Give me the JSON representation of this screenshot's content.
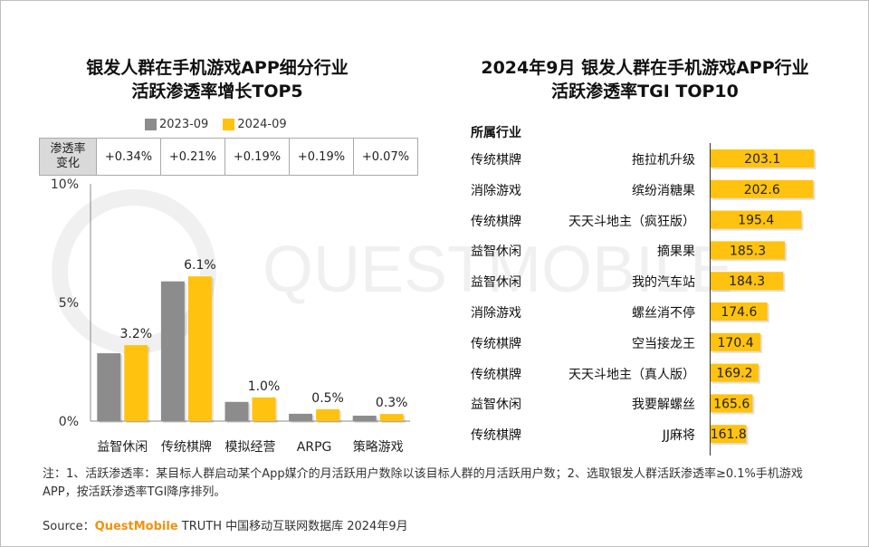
{
  "watermark": "QUESTMOBILE",
  "left_chart": {
    "title_line1": "银发人群在手机游戏APP细分行业",
    "title_line2": "活跃渗透率增长TOP5",
    "growth_header": "渗透率变化",
    "growth_header_l1": "渗透率",
    "growth_header_l2": "变化",
    "growth": [
      "+0.34%",
      "+0.21%",
      "+0.19%",
      "+0.19%",
      "+0.07%"
    ]
  },
  "right_chart": {
    "title_line1": "2024年9月 银发人群在手机游戏APP行业",
    "title_line2": "活跃渗透率TGI TOP10",
    "column_header": "所属行业"
  },
  "chart_data": [
    {
      "type": "bar",
      "title": "银发人群在手机游戏APP细分行业活跃渗透率增长TOP5",
      "categories": [
        "益智休闲",
        "传统棋牌",
        "模拟经营",
        "ARPG",
        "策略游戏"
      ],
      "series": [
        {
          "name": "2023-09",
          "values": [
            2.86,
            5.89,
            0.81,
            0.31,
            0.23
          ],
          "color": "#8c8c8c"
        },
        {
          "name": "2024-09",
          "values": [
            3.2,
            6.1,
            1.0,
            0.5,
            0.3
          ],
          "color": "#ffc20e"
        }
      ],
      "data_labels": [
        "3.2%",
        "6.1%",
        "1.0%",
        "0.5%",
        "0.3%"
      ],
      "yticks": [
        "0%",
        "5%",
        "10%"
      ],
      "ylim": [
        0,
        10
      ],
      "legend": "top"
    },
    {
      "type": "bar",
      "orientation": "horizontal",
      "title": "2024年9月 银发人群在手机游戏APP行业活跃渗透率TGI TOP10",
      "rows": [
        {
          "category": "传统棋牌",
          "app": "拖拉机升级",
          "value": 203.1
        },
        {
          "category": "消除游戏",
          "app": "缤纷消糖果",
          "value": 202.6
        },
        {
          "category": "传统棋牌",
          "app": "天天斗地主（疯狂版）",
          "value": 195.4
        },
        {
          "category": "益智休闲",
          "app": "摘果果",
          "value": 185.3
        },
        {
          "category": "益智休闲",
          "app": "我的汽车站",
          "value": 184.3
        },
        {
          "category": "消除游戏",
          "app": "螺丝消不停",
          "value": 174.6
        },
        {
          "category": "传统棋牌",
          "app": "空当接龙王",
          "value": 170.4
        },
        {
          "category": "传统棋牌",
          "app": "天天斗地主（真人版）",
          "value": 169.2
        },
        {
          "category": "益智休闲",
          "app": "我要解螺丝",
          "value": 165.6
        },
        {
          "category": "传统棋牌",
          "app": "JJ麻将",
          "value": 161.8
        }
      ],
      "color": "#ffc20e"
    }
  ],
  "note": "注：1、活跃渗透率：某目标人群启动某个App媒介的月活跃用户数除以该目标人群的月活跃用户数；2、选取银发人群活跃渗透率≥0.1%手机游戏APP，按活跃渗透率TGI降序排列。",
  "source": {
    "prefix": "Source：",
    "brand": "QuestMobile",
    "rest": " TRUTH 中国移动互联网数据库 2024年9月"
  }
}
